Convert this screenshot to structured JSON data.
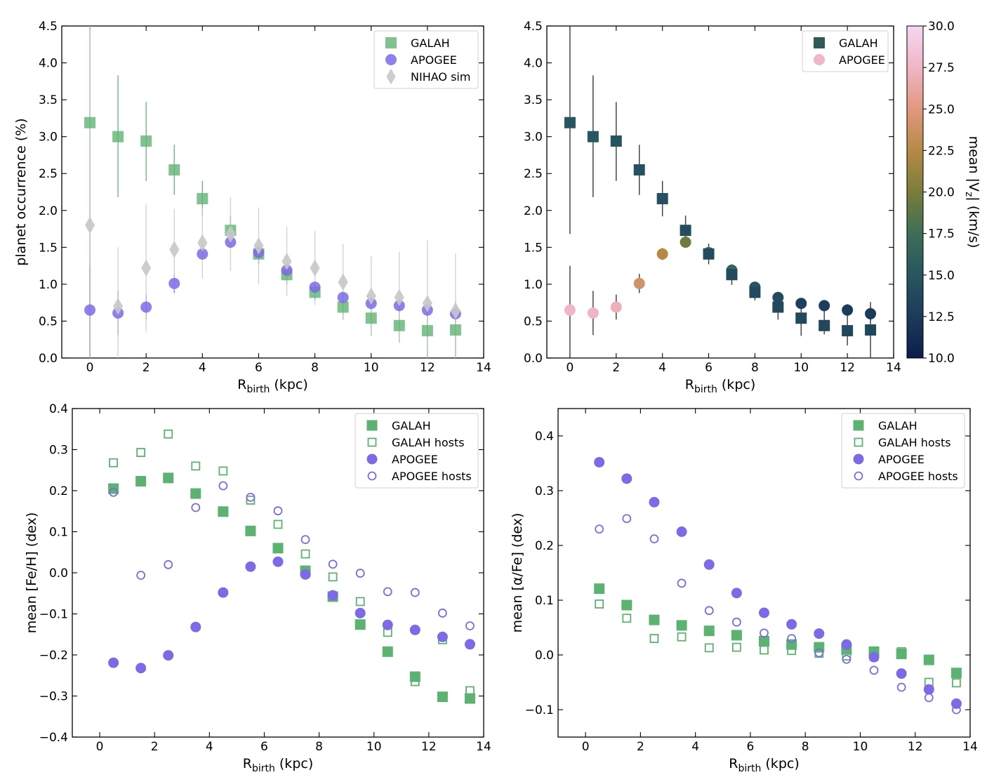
{
  "colors": {
    "galah_green": "#5cb271",
    "apogee_purple": "#7b6be6",
    "nihao_grey": "#c8c8c8",
    "colormap": [
      "#0b1d4d",
      "#1c3b5b",
      "#275660",
      "#3d6e56",
      "#7a7d3a",
      "#b68a45",
      "#e2977f",
      "#f0b6c6",
      "#f5d6f2"
    ]
  },
  "chart_data": [
    {
      "id": "top-left",
      "type": "scatter",
      "xlabel_main": "R",
      "xlabel_sub": "birth",
      "xlabel_unit": " (kpc)",
      "ylabel": "planet occurrence (%)",
      "xlim": [
        -1,
        14
      ],
      "ylim": [
        0,
        4.5
      ],
      "xticks": [
        0,
        2,
        4,
        6,
        8,
        10,
        12,
        14
      ],
      "yticks": [
        0.0,
        0.5,
        1.0,
        1.5,
        2.0,
        2.5,
        3.0,
        3.5,
        4.0,
        4.5
      ],
      "ytick_format": "1",
      "series": [
        {
          "name": "GALAH",
          "marker": "square",
          "filled": true,
          "color": "#5cb271",
          "alpha": 0.78,
          "x": [
            0,
            1,
            2,
            3,
            4,
            5,
            6,
            7,
            8,
            9,
            10,
            11,
            12,
            13
          ],
          "y": [
            3.19,
            3.0,
            2.94,
            2.55,
            2.16,
            1.73,
            1.41,
            1.13,
            0.89,
            0.69,
            0.54,
            0.44,
            0.37,
            0.38
          ],
          "err": [
            [
              3.19,
              1.31
            ],
            [
              0.82,
              0.83
            ],
            [
              0.54,
              0.53
            ],
            [
              0.34,
              0.34
            ],
            [
              0.24,
              0.24
            ],
            [
              0.2,
              0.2
            ],
            [
              0.14,
              0.14
            ],
            [
              0.14,
              0.14
            ],
            [
              0.11,
              0.11
            ],
            [
              0.17,
              0.17
            ],
            [
              0.24,
              0.24
            ],
            [
              0.22,
              0.22
            ],
            [
              0.37,
              0.26
            ],
            [
              0.38,
              0.38
            ]
          ]
        },
        {
          "name": "APOGEE",
          "marker": "circle",
          "filled": true,
          "color": "#7b6be6",
          "alpha": 0.85,
          "x": [
            0,
            1,
            2,
            3,
            4,
            5,
            6,
            7,
            8,
            9,
            10,
            11,
            12,
            13
          ],
          "y": [
            0.65,
            0.61,
            0.69,
            1.01,
            1.41,
            1.57,
            1.43,
            1.19,
            0.96,
            0.82,
            0.74,
            0.71,
            0.65,
            0.6
          ],
          "err": [
            [
              0.65,
              0.6
            ],
            [
              0.3,
              0.3
            ],
            [
              0.17,
              0.17
            ],
            [
              0.13,
              0.13
            ],
            [
              0.08,
              0.08
            ],
            [
              0.06,
              0.06
            ],
            [
              0.06,
              0.06
            ],
            [
              0.05,
              0.05
            ],
            [
              0.04,
              0.04
            ],
            [
              0.05,
              0.05
            ],
            [
              0.05,
              0.05
            ],
            [
              0.06,
              0.06
            ],
            [
              0.08,
              0.08
            ],
            [
              0.1,
              0.1
            ]
          ]
        },
        {
          "name": "NIHAO sim",
          "marker": "diamond",
          "filled": true,
          "color": "#c8c8c8",
          "alpha": 0.9,
          "x": [
            0,
            1,
            2,
            3,
            4,
            5,
            6,
            7,
            8,
            9,
            10,
            11,
            12,
            13
          ],
          "y": [
            1.8,
            0.7,
            1.22,
            1.47,
            1.56,
            1.68,
            1.52,
            1.31,
            1.22,
            1.03,
            0.84,
            0.82,
            0.74,
            0.64
          ],
          "err": [
            [
              1.8,
              2.7
            ],
            [
              0.7,
              0.8
            ],
            [
              0.86,
              0.86
            ],
            [
              0.55,
              0.55
            ],
            [
              0.48,
              0.48
            ],
            [
              0.5,
              0.5
            ],
            [
              0.52,
              0.52
            ],
            [
              0.47,
              0.47
            ],
            [
              0.5,
              0.5
            ],
            [
              0.52,
              0.52
            ],
            [
              0.54,
              0.54
            ],
            [
              0.62,
              0.62
            ],
            [
              0.74,
              0.86
            ],
            [
              0.64,
              0.78
            ]
          ]
        }
      ],
      "legend": {
        "placement": "upper right",
        "entries": [
          "GALAH",
          "APOGEE",
          "NIHAO sim"
        ]
      }
    },
    {
      "id": "top-right",
      "type": "scatter",
      "xlabel_main": "R",
      "xlabel_sub": "birth",
      "xlabel_unit": " (kpc)",
      "ylabel": "",
      "xlim": [
        -1,
        14
      ],
      "ylim": [
        0,
        4.5
      ],
      "xticks": [
        0,
        2,
        4,
        6,
        8,
        10,
        12,
        14
      ],
      "yticks": [
        0.0,
        0.5,
        1.0,
        1.5,
        2.0,
        2.5,
        3.0,
        3.5,
        4.0,
        4.5
      ],
      "ytick_format": "1",
      "colorbar": {
        "label": "mean |V",
        "label_sub": "z",
        "label_unit": "| (km/s)",
        "range": [
          10,
          30
        ],
        "ticks": [
          10.0,
          12.5,
          15.0,
          17.5,
          20.0,
          22.5,
          25.0,
          27.5,
          30.0
        ]
      },
      "series": [
        {
          "name": "GALAH",
          "marker": "square",
          "filled": true,
          "color": "#2f5a58",
          "alpha": 1,
          "x": [
            0,
            1,
            2,
            3,
            4,
            5,
            6,
            7,
            8,
            9,
            10,
            11,
            12,
            13
          ],
          "y": [
            3.19,
            3.0,
            2.94,
            2.55,
            2.16,
            1.73,
            1.41,
            1.13,
            0.89,
            0.69,
            0.54,
            0.44,
            0.37,
            0.38
          ],
          "c": [
            15,
            15,
            14.8,
            14.6,
            14.4,
            14.3,
            14.2,
            14.0,
            13.9,
            13.8,
            13.7,
            13.6,
            13.6,
            13.6
          ],
          "err": [
            [
              1.51,
              1.31
            ],
            [
              0.82,
              0.83
            ],
            [
              0.54,
              0.53
            ],
            [
              0.34,
              0.34
            ],
            [
              0.24,
              0.24
            ],
            [
              0.2,
              0.2
            ],
            [
              0.14,
              0.14
            ],
            [
              0.14,
              0.14
            ],
            [
              0.11,
              0.11
            ],
            [
              0.17,
              0.17
            ],
            [
              0.24,
              0.24
            ],
            [
              0.12,
              0.22
            ],
            [
              0.2,
              0.26
            ],
            [
              0.38,
              0.38
            ]
          ]
        },
        {
          "name": "APOGEE",
          "marker": "circle",
          "filled": true,
          "color": "#f0b6c6",
          "alpha": 1,
          "x": [
            0,
            1,
            2,
            3,
            4,
            5,
            6,
            7,
            8,
            9,
            10,
            11,
            12,
            13
          ],
          "y": [
            0.65,
            0.61,
            0.69,
            1.01,
            1.41,
            1.57,
            1.43,
            1.19,
            0.96,
            0.82,
            0.74,
            0.71,
            0.65,
            0.6
          ],
          "c": [
            27.5,
            27.5,
            27.0,
            24.0,
            22.5,
            19.5,
            18.0,
            16.5,
            15.0,
            14.0,
            13.0,
            12.8,
            12.6,
            12.5
          ],
          "err": [
            [
              0.65,
              0.6
            ],
            [
              0.3,
              0.3
            ],
            [
              0.17,
              0.17
            ],
            [
              0.13,
              0.13
            ],
            [
              0.08,
              0.08
            ],
            [
              0.06,
              0.06
            ],
            [
              0.06,
              0.06
            ],
            [
              0.05,
              0.05
            ],
            [
              0.04,
              0.04
            ],
            [
              0.05,
              0.05
            ],
            [
              0.05,
              0.05
            ],
            [
              0.06,
              0.06
            ],
            [
              0.08,
              0.08
            ],
            [
              0.1,
              0.1
            ]
          ]
        }
      ],
      "legend": {
        "placement": "upper right",
        "entries": [
          "GALAH",
          "APOGEE"
        ]
      }
    },
    {
      "id": "bottom-left",
      "type": "scatter",
      "xlabel_main": "R",
      "xlabel_sub": "birth",
      "xlabel_unit": " (kpc)",
      "ylabel": "mean [Fe/H] (dex)",
      "xlim": [
        -1,
        14
      ],
      "ylim": [
        -0.4,
        0.4
      ],
      "xticks": [
        0,
        2,
        4,
        6,
        8,
        10,
        12,
        14
      ],
      "yticks": [
        -0.4,
        -0.3,
        -0.2,
        -0.1,
        0.0,
        0.1,
        0.2,
        0.3,
        0.4
      ],
      "ytick_format": "1",
      "series": [
        {
          "name": "GALAH",
          "marker": "square",
          "filled": true,
          "color": "#5cb271",
          "alpha": 1,
          "x": [
            0.5,
            1.5,
            2.5,
            3.5,
            4.5,
            5.5,
            6.5,
            7.5,
            8.5,
            9.5,
            10.5,
            11.5,
            12.5,
            13.5
          ],
          "y": [
            0.205,
            0.223,
            0.231,
            0.193,
            0.149,
            0.102,
            0.06,
            0.005,
            -0.058,
            -0.126,
            -0.192,
            -0.253,
            -0.302,
            -0.306
          ]
        },
        {
          "name": "GALAH hosts",
          "marker": "square",
          "filled": false,
          "color": "#5cb271",
          "alpha": 1,
          "x": [
            0.5,
            1.5,
            2.5,
            3.5,
            4.5,
            5.5,
            6.5,
            7.5,
            8.5,
            9.5,
            10.5,
            11.5,
            12.5,
            13.5
          ],
          "y": [
            0.268,
            0.293,
            0.338,
            0.26,
            0.248,
            0.177,
            0.118,
            0.046,
            -0.01,
            -0.07,
            -0.145,
            -0.265,
            -0.163,
            -0.287
          ]
        },
        {
          "name": "APOGEE",
          "marker": "circle",
          "filled": true,
          "color": "#7b6be6",
          "alpha": 1,
          "x": [
            0.5,
            1.5,
            2.5,
            3.5,
            4.5,
            5.5,
            6.5,
            7.5,
            8.5,
            9.5,
            10.5,
            11.5,
            12.5,
            13.5
          ],
          "y": [
            -0.219,
            -0.232,
            -0.201,
            -0.132,
            -0.048,
            0.015,
            0.027,
            -0.004,
            -0.055,
            -0.098,
            -0.127,
            -0.139,
            -0.156,
            -0.174
          ]
        },
        {
          "name": "APOGEE hosts",
          "marker": "circle",
          "filled": false,
          "color": "#7b6be6",
          "alpha": 1,
          "x": [
            0.5,
            1.5,
            2.5,
            3.5,
            4.5,
            5.5,
            6.5,
            7.5,
            8.5,
            9.5,
            10.5,
            11.5,
            12.5,
            13.5
          ],
          "y": [
            0.196,
            -0.006,
            0.02,
            0.159,
            0.212,
            0.184,
            0.151,
            0.081,
            0.021,
            -0.001,
            -0.046,
            -0.048,
            -0.098,
            -0.129
          ]
        }
      ],
      "legend": {
        "placement": "upper right",
        "entries": [
          "GALAH",
          "GALAH hosts",
          "APOGEE",
          "APOGEE hosts"
        ]
      }
    },
    {
      "id": "bottom-right",
      "type": "scatter",
      "xlabel_main": "R",
      "xlabel_sub": "birth",
      "xlabel_unit": " (kpc)",
      "ylabel": "mean [α/Fe] (dex)",
      "xlim": [
        -1,
        14
      ],
      "ylim": [
        -0.15,
        0.45
      ],
      "xticks": [
        0,
        2,
        4,
        6,
        8,
        10,
        12,
        14
      ],
      "yticks": [
        -0.1,
        0.0,
        0.1,
        0.2,
        0.3,
        0.4
      ],
      "ytick_format": "1",
      "series": [
        {
          "name": "GALAH",
          "marker": "square",
          "filled": true,
          "color": "#5cb271",
          "alpha": 1,
          "x": [
            0.5,
            1.5,
            2.5,
            3.5,
            4.5,
            5.5,
            6.5,
            7.5,
            8.5,
            9.5,
            10.5,
            11.5,
            12.5,
            13.5
          ],
          "y": [
            0.121,
            0.091,
            0.064,
            0.054,
            0.044,
            0.036,
            0.025,
            0.019,
            0.014,
            0.01,
            0.006,
            0.002,
            -0.009,
            -0.033
          ]
        },
        {
          "name": "GALAH hosts",
          "marker": "square",
          "filled": false,
          "color": "#5cb271",
          "alpha": 1,
          "x": [
            0.5,
            1.5,
            2.5,
            3.5,
            4.5,
            5.5,
            6.5,
            7.5,
            8.5,
            9.5,
            10.5,
            11.5,
            12.5,
            13.5
          ],
          "y": [
            0.093,
            0.067,
            0.03,
            0.033,
            0.013,
            0.014,
            0.009,
            0.008,
            0.003,
            -0.002,
            -0.003,
            0.006,
            -0.05,
            -0.051
          ]
        },
        {
          "name": "APOGEE",
          "marker": "circle",
          "filled": true,
          "color": "#7b6be6",
          "alpha": 1,
          "x": [
            0.5,
            1.5,
            2.5,
            3.5,
            4.5,
            5.5,
            6.5,
            7.5,
            8.5,
            9.5,
            10.5,
            11.5,
            12.5,
            13.5
          ],
          "y": [
            0.352,
            0.322,
            0.279,
            0.225,
            0.165,
            0.113,
            0.077,
            0.056,
            0.039,
            0.019,
            -0.004,
            -0.034,
            -0.063,
            -0.089
          ]
        },
        {
          "name": "APOGEE hosts",
          "marker": "circle",
          "filled": false,
          "color": "#7b6be6",
          "alpha": 1,
          "x": [
            0.5,
            1.5,
            2.5,
            3.5,
            4.5,
            5.5,
            6.5,
            7.5,
            8.5,
            9.5,
            10.5,
            11.5,
            12.5,
            13.5
          ],
          "y": [
            0.23,
            0.249,
            0.212,
            0.131,
            0.081,
            0.06,
            0.04,
            0.03,
            0.004,
            -0.008,
            -0.028,
            -0.059,
            -0.078,
            -0.1
          ]
        }
      ],
      "legend": {
        "placement": "upper right",
        "entries": [
          "GALAH",
          "GALAH hosts",
          "APOGEE",
          "APOGEE hosts"
        ]
      }
    }
  ]
}
